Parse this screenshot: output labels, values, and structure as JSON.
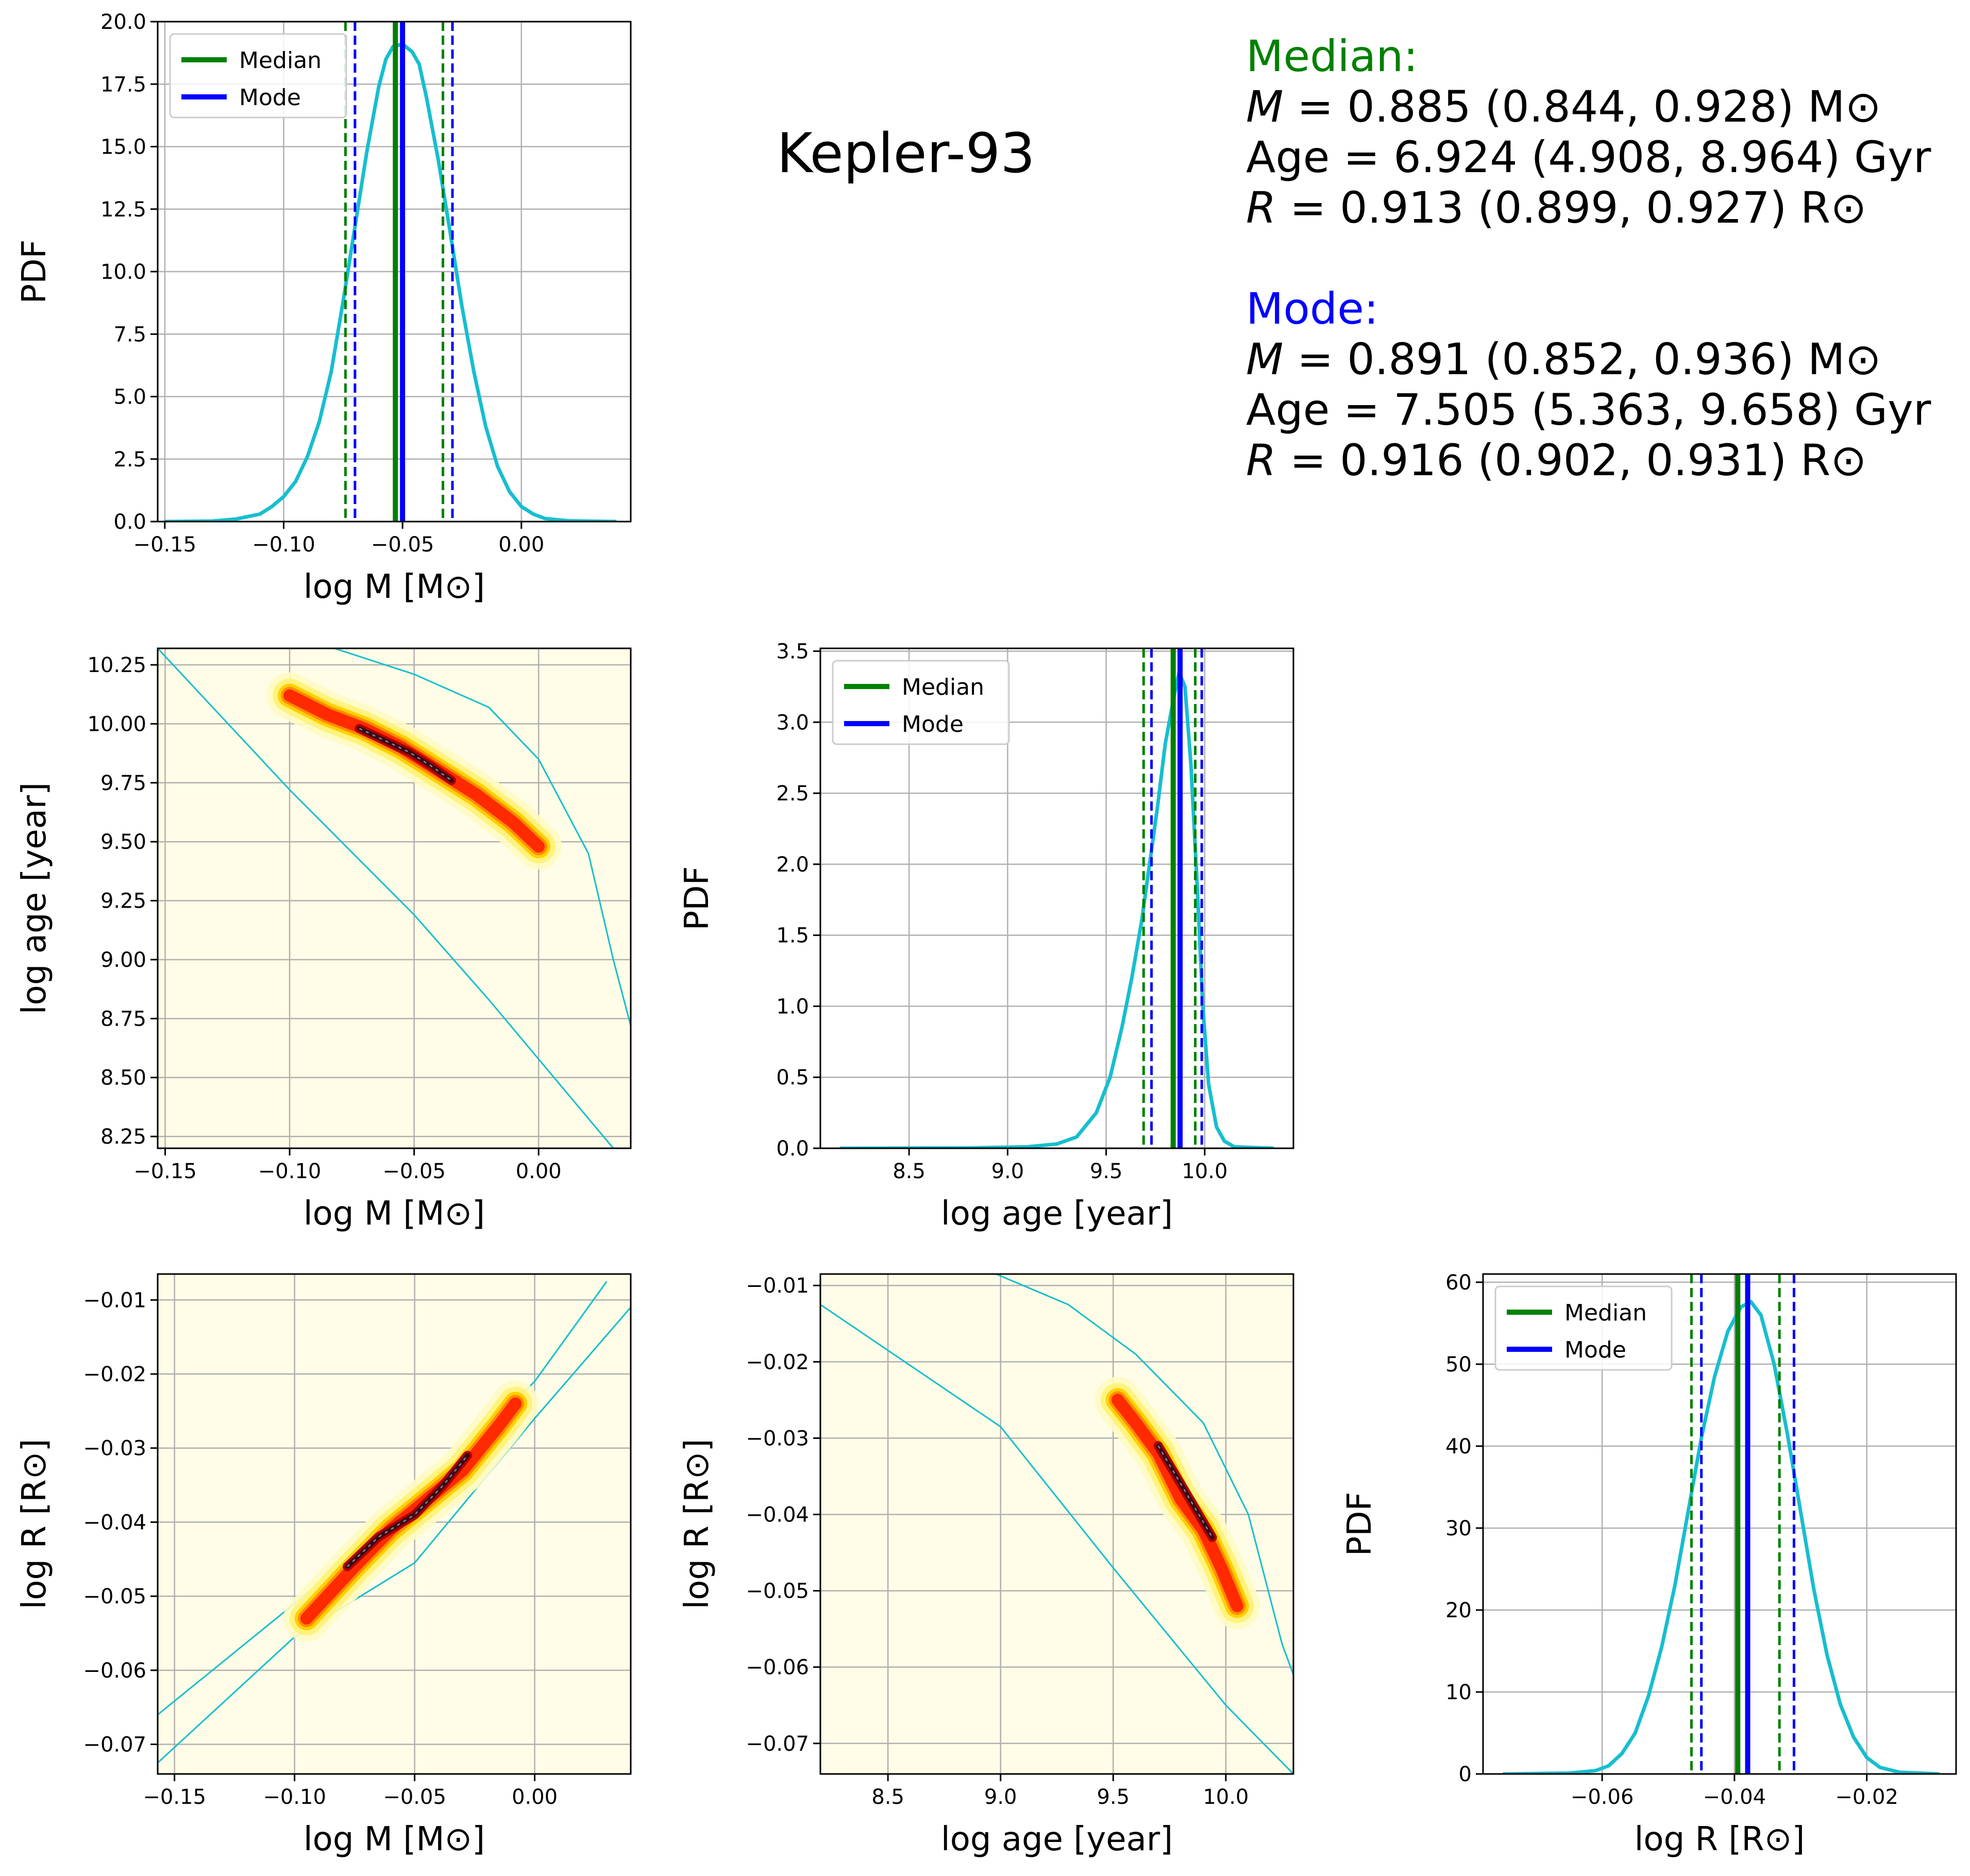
{
  "title": "Kepler-93",
  "colors": {
    "median": "#008000",
    "mode": "#0000ff",
    "pdf_curve": "#17becf",
    "contour": "#17becf",
    "grid": "#b0b0b0",
    "density_background": "#fffde7",
    "density_high": "#800000"
  },
  "summary": {
    "median_header": "Median:",
    "median_lines": [
      {
        "sym": "M",
        "text": " = 0.885 (0.844, 0.928) M⊙"
      },
      {
        "sym": "",
        "text": "Age = 6.924 (4.908, 8.964) Gyr"
      },
      {
        "sym": "R",
        "text": " = 0.913 (0.899, 0.927) R⊙"
      }
    ],
    "mode_header": "Mode:",
    "mode_lines": [
      {
        "sym": "M",
        "text": " = 0.891 (0.852, 0.936) M⊙"
      },
      {
        "sym": "",
        "text": "Age = 7.505 (5.363, 9.658) Gyr"
      },
      {
        "sym": "R",
        "text": " = 0.916 (0.902, 0.931) R⊙"
      }
    ]
  },
  "labels": {
    "pdf": "PDF",
    "log_m": "log M [M⊙]",
    "log_age": "log age [year]",
    "log_r": "log R [R⊙]",
    "legend_median": "Median",
    "legend_mode": "Mode"
  },
  "chart_data": [
    {
      "id": "hist_logM",
      "type": "line",
      "xlabel": "log M [M⊙]",
      "ylabel": "PDF",
      "xlim": [
        -0.153,
        0.046
      ],
      "ylim": [
        0,
        20
      ],
      "xticks": [
        -0.15,
        -0.1,
        -0.05,
        0.0
      ],
      "xticklabels": [
        "−0.15",
        "−0.10",
        "−0.05",
        "0.00"
      ],
      "yticks": [
        0,
        2.5,
        5,
        7.5,
        10,
        12.5,
        15,
        17.5,
        20
      ],
      "yticklabels": [
        "0.0",
        "2.5",
        "5.0",
        "7.5",
        "10.0",
        "12.5",
        "15.0",
        "17.5",
        "20.0"
      ],
      "legend": "top-left",
      "grid": true,
      "x": [
        -0.15,
        -0.13,
        -0.12,
        -0.11,
        -0.105,
        -0.1,
        -0.095,
        -0.09,
        -0.085,
        -0.08,
        -0.075,
        -0.07,
        -0.065,
        -0.06,
        -0.057,
        -0.054,
        -0.05,
        -0.046,
        -0.043,
        -0.04,
        -0.035,
        -0.03,
        -0.025,
        -0.02,
        -0.015,
        -0.01,
        -0.005,
        0.0,
        0.005,
        0.01,
        0.02,
        0.04
      ],
      "y": [
        0.0,
        0.02,
        0.1,
        0.3,
        0.6,
        1.0,
        1.6,
        2.6,
        4.0,
        6.0,
        8.8,
        11.8,
        14.8,
        17.4,
        18.5,
        19.0,
        19.1,
        18.8,
        18.3,
        17.0,
        14.5,
        11.6,
        8.6,
        6.0,
        3.8,
        2.2,
        1.2,
        0.6,
        0.3,
        0.12,
        0.03,
        0.0
      ],
      "median": {
        "value": -0.053,
        "lo": -0.074,
        "hi": -0.033
      },
      "mode": {
        "value": -0.05,
        "lo": -0.07,
        "hi": -0.029
      }
    },
    {
      "id": "hist_logAge",
      "type": "line",
      "xlabel": "log age [year]",
      "ylabel": "PDF",
      "xlim": [
        8.05,
        10.45
      ],
      "ylim": [
        0,
        3.52
      ],
      "xticks": [
        8.5,
        9.0,
        9.5,
        10.0
      ],
      "xticklabels": [
        "8.5",
        "9.0",
        "9.5",
        "10.0"
      ],
      "yticks": [
        0,
        0.5,
        1.0,
        1.5,
        2.0,
        2.5,
        3.0,
        3.5
      ],
      "yticklabels": [
        "0.0",
        "0.5",
        "1.0",
        "1.5",
        "2.0",
        "2.5",
        "3.0",
        "3.5"
      ],
      "legend": "top-left",
      "grid": true,
      "x": [
        8.15,
        8.8,
        9.1,
        9.25,
        9.35,
        9.45,
        9.52,
        9.58,
        9.63,
        9.68,
        9.72,
        9.76,
        9.8,
        9.84,
        9.87,
        9.9,
        9.93,
        9.96,
        9.99,
        10.02,
        10.06,
        10.1,
        10.15,
        10.35
      ],
      "y": [
        0.0,
        0.002,
        0.01,
        0.03,
        0.08,
        0.25,
        0.5,
        0.85,
        1.2,
        1.6,
        2.0,
        2.4,
        2.85,
        3.15,
        3.35,
        3.25,
        2.7,
        1.9,
        1.0,
        0.45,
        0.15,
        0.05,
        0.01,
        0.0
      ],
      "median": {
        "value": 9.84,
        "lo": 9.69,
        "hi": 9.952
      },
      "mode": {
        "value": 9.875,
        "lo": 9.73,
        "hi": 9.985
      }
    },
    {
      "id": "hist_logR",
      "type": "line",
      "xlabel": "log R [R⊙]",
      "ylabel": "PDF",
      "xlim": [
        -0.078,
        -0.0065
      ],
      "ylim": [
        0,
        61
      ],
      "xticks": [
        -0.06,
        -0.04,
        -0.02
      ],
      "xticklabels": [
        "−0.06",
        "−0.04",
        "−0.02"
      ],
      "yticks": [
        0,
        10,
        20,
        30,
        40,
        50,
        60
      ],
      "yticklabels": [
        "0",
        "10",
        "20",
        "30",
        "40",
        "50",
        "60"
      ],
      "legend": "top-left",
      "grid": true,
      "x": [
        -0.075,
        -0.065,
        -0.061,
        -0.059,
        -0.057,
        -0.055,
        -0.053,
        -0.051,
        -0.049,
        -0.047,
        -0.045,
        -0.043,
        -0.041,
        -0.039,
        -0.0375,
        -0.036,
        -0.034,
        -0.032,
        -0.03,
        -0.028,
        -0.026,
        -0.024,
        -0.022,
        -0.02,
        -0.018,
        -0.015,
        -0.009
      ],
      "y": [
        0.0,
        0.1,
        0.4,
        1.0,
        2.5,
        5.0,
        9.5,
        15.5,
        23.0,
        32.0,
        41.0,
        48.5,
        54.0,
        57.0,
        57.6,
        56.0,
        50.0,
        41.5,
        32.0,
        22.5,
        14.5,
        8.5,
        4.5,
        2.0,
        0.8,
        0.2,
        0.0
      ],
      "median": {
        "value": -0.0395,
        "lo": -0.0465,
        "hi": -0.0332
      },
      "mode": {
        "value": -0.038,
        "lo": -0.045,
        "hi": -0.031
      }
    },
    {
      "id": "density_logM_logAge",
      "type": "heatmap",
      "xlabel": "log M [M⊙]",
      "ylabel": "log age [year]",
      "xlim": [
        -0.153,
        0.037
      ],
      "ylim": [
        8.2,
        10.32
      ],
      "xticks": [
        -0.15,
        -0.1,
        -0.05,
        0.0
      ],
      "xticklabels": [
        "−0.15",
        "−0.10",
        "−0.05",
        "0.00"
      ],
      "yticks": [
        8.25,
        8.5,
        8.75,
        9.0,
        9.25,
        9.5,
        9.75,
        10.0,
        10.25
      ],
      "yticklabels": [
        "8.25",
        "8.50",
        "8.75",
        "9.00",
        "9.25",
        "9.50",
        "9.75",
        "10.00",
        "10.25"
      ],
      "grid": true,
      "ridge": [
        [
          -0.1,
          10.12
        ],
        [
          -0.085,
          10.04
        ],
        [
          -0.07,
          9.98
        ],
        [
          -0.055,
          9.9
        ],
        [
          -0.04,
          9.8
        ],
        [
          -0.025,
          9.7
        ],
        [
          -0.01,
          9.58
        ],
        [
          0.0,
          9.48
        ]
      ],
      "core_ridge": [
        [
          -0.072,
          9.98
        ],
        [
          -0.062,
          9.93
        ],
        [
          -0.052,
          9.88
        ],
        [
          -0.043,
          9.82
        ],
        [
          -0.035,
          9.76
        ]
      ],
      "boundary_lower": [
        [
          -0.153,
          10.32
        ],
        [
          -0.1,
          9.72
        ],
        [
          -0.05,
          9.19
        ],
        [
          -0.02,
          8.83
        ],
        [
          0.03,
          8.2
        ]
      ],
      "boundary_upper": [
        [
          -0.082,
          10.32
        ],
        [
          -0.05,
          10.21
        ],
        [
          -0.02,
          10.07
        ],
        [
          0.0,
          9.85
        ],
        [
          0.02,
          9.45
        ],
        [
          0.03,
          9.0
        ],
        [
          0.037,
          8.72
        ]
      ]
    },
    {
      "id": "density_logM_logR",
      "type": "heatmap",
      "xlabel": "log M [M⊙]",
      "ylabel": "log R [R⊙]",
      "xlim": [
        -0.157,
        0.04
      ],
      "ylim": [
        -0.074,
        -0.0065
      ],
      "xticks": [
        -0.15,
        -0.1,
        -0.05,
        0.0
      ],
      "xticklabels": [
        "−0.15",
        "−0.10",
        "−0.05",
        "0.00"
      ],
      "yticks": [
        -0.07,
        -0.06,
        -0.05,
        -0.04,
        -0.03,
        -0.02,
        -0.01
      ],
      "yticklabels": [
        "−0.07",
        "−0.06",
        "−0.05",
        "−0.04",
        "−0.03",
        "−0.02",
        "−0.01"
      ],
      "grid": true,
      "ridge": [
        [
          -0.095,
          -0.053
        ],
        [
          -0.075,
          -0.046
        ],
        [
          -0.06,
          -0.041
        ],
        [
          -0.045,
          -0.037
        ],
        [
          -0.03,
          -0.033
        ],
        [
          -0.015,
          -0.027
        ],
        [
          -0.008,
          -0.024
        ]
      ],
      "core_ridge": [
        [
          -0.078,
          -0.046
        ],
        [
          -0.065,
          -0.042
        ],
        [
          -0.05,
          -0.039
        ],
        [
          -0.038,
          -0.035
        ],
        [
          -0.028,
          -0.031
        ]
      ],
      "boundary_lower": [
        [
          -0.157,
          -0.0725
        ],
        [
          -0.1,
          -0.0555
        ],
        [
          -0.05,
          -0.0455
        ],
        [
          0.0,
          -0.026
        ],
        [
          0.04,
          -0.011
        ]
      ],
      "boundary_upper": [
        [
          -0.157,
          -0.066
        ],
        [
          -0.1,
          -0.051
        ],
        [
          -0.05,
          -0.037
        ],
        [
          0.0,
          -0.021
        ],
        [
          0.03,
          -0.0075
        ]
      ]
    },
    {
      "id": "density_logAge_logR",
      "type": "heatmap",
      "xlabel": "log age [year]",
      "ylabel": "log R [R⊙]",
      "xlim": [
        8.2,
        10.3
      ],
      "ylim": [
        -0.074,
        -0.0085
      ],
      "xticks": [
        8.5,
        9.0,
        9.5,
        10.0
      ],
      "xticklabels": [
        "8.5",
        "9.0",
        "9.5",
        "10.0"
      ],
      "yticks": [
        -0.07,
        -0.06,
        -0.05,
        -0.04,
        -0.03,
        -0.02,
        -0.01
      ],
      "yticklabels": [
        "−0.07",
        "−0.06",
        "−0.05",
        "−0.04",
        "−0.03",
        "−0.02",
        "−0.01"
      ],
      "grid": true,
      "ridge": [
        [
          9.52,
          -0.025
        ],
        [
          9.6,
          -0.028
        ],
        [
          9.7,
          -0.032
        ],
        [
          9.8,
          -0.038
        ],
        [
          9.9,
          -0.042
        ],
        [
          9.98,
          -0.047
        ],
        [
          10.05,
          -0.052
        ]
      ],
      "core_ridge": [
        [
          9.7,
          -0.031
        ],
        [
          9.78,
          -0.035
        ],
        [
          9.86,
          -0.039
        ],
        [
          9.94,
          -0.043
        ]
      ],
      "boundary_lower": [
        [
          8.2,
          -0.0125
        ],
        [
          8.5,
          -0.0185
        ],
        [
          9.0,
          -0.0285
        ],
        [
          9.5,
          -0.047
        ],
        [
          10.0,
          -0.065
        ],
        [
          10.3,
          -0.074
        ]
      ],
      "boundary_upper": [
        [
          8.98,
          -0.0085
        ],
        [
          9.3,
          -0.0125
        ],
        [
          9.6,
          -0.019
        ],
        [
          9.9,
          -0.028
        ],
        [
          10.1,
          -0.04
        ],
        [
          10.25,
          -0.057
        ],
        [
          10.3,
          -0.061
        ]
      ]
    }
  ]
}
